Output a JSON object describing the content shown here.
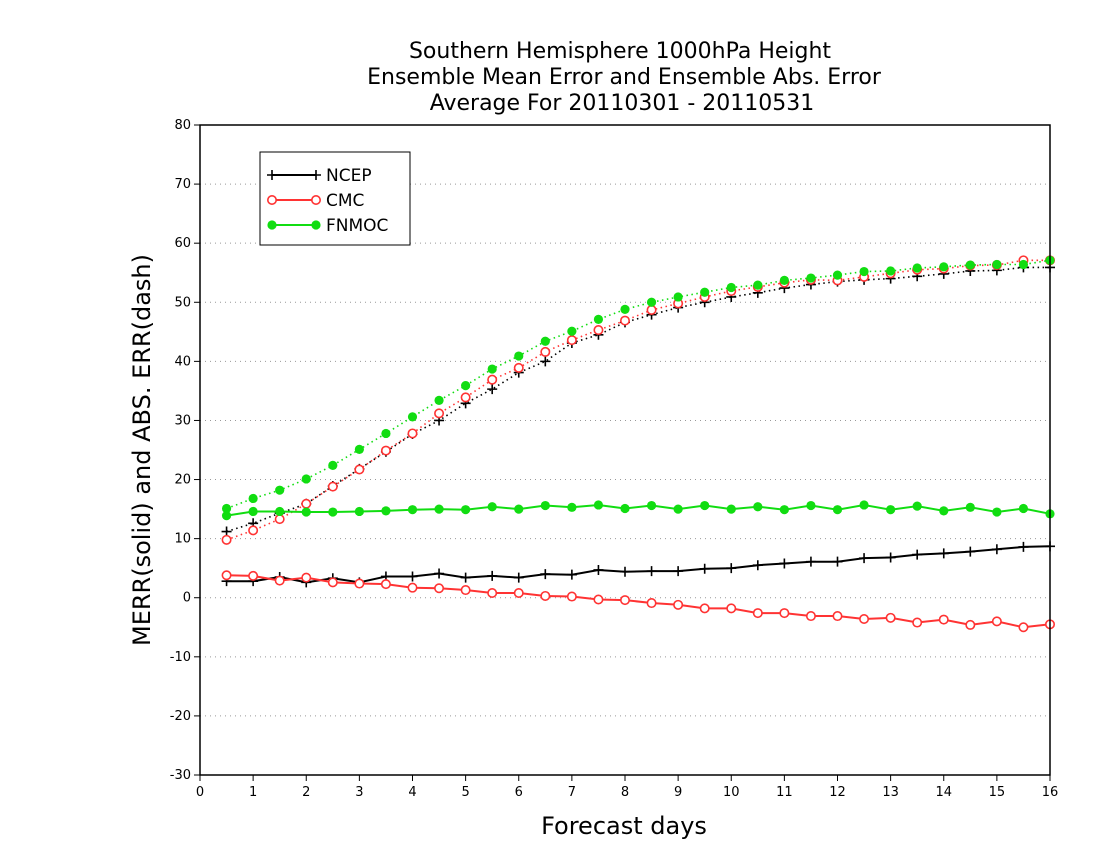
{
  "chart_data": {
    "type": "line",
    "title_lines": [
      "Southern Hemisphere 1000hPa Height",
      "Ensemble Mean Error and Ensemble Abs. Error",
      "Average For 20110301 - 20110531"
    ],
    "xlabel": "Forecast days",
    "ylabel": "MERR(solid) and ABS. ERR(dash)",
    "xlim": [
      0,
      16
    ],
    "ylim": [
      -30,
      80
    ],
    "xticks": [
      0,
      1,
      2,
      3,
      4,
      5,
      6,
      7,
      8,
      9,
      10,
      11,
      12,
      13,
      14,
      15,
      16
    ],
    "yticks": [
      -30,
      -20,
      -10,
      0,
      10,
      20,
      30,
      40,
      50,
      60,
      70,
      80
    ],
    "grid": "horizontal dotted",
    "legend_position": "top-left",
    "x": [
      0.5,
      1.0,
      1.5,
      2.0,
      2.5,
      3.0,
      3.5,
      4.0,
      4.5,
      5.0,
      5.5,
      6.0,
      6.5,
      7.0,
      7.5,
      8.0,
      8.5,
      9.0,
      9.5,
      10.0,
      10.5,
      11.0,
      11.5,
      12.0,
      12.5,
      13.0,
      13.5,
      14.0,
      14.5,
      15.0,
      15.5,
      16.0
    ],
    "series": [
      {
        "name": "NCEP",
        "color": "#000000",
        "marker": "plus",
        "mean_error": [
          2.8,
          2.8,
          3.5,
          2.6,
          3.3,
          2.6,
          3.6,
          3.6,
          4.1,
          3.4,
          3.7,
          3.4,
          4.0,
          3.9,
          4.7,
          4.4,
          4.5,
          4.5,
          4.9,
          5.0,
          5.5,
          5.8,
          6.1,
          6.1,
          6.7,
          6.8,
          7.3,
          7.5,
          7.8,
          8.2,
          8.6,
          8.7
        ],
        "abs_error": [
          11.2,
          12.6,
          14.3,
          15.9,
          18.9,
          21.8,
          24.7,
          27.7,
          30.0,
          32.9,
          35.3,
          38.1,
          40.0,
          43.1,
          44.5,
          46.6,
          47.9,
          49.1,
          50.0,
          50.9,
          51.6,
          52.4,
          53.0,
          53.5,
          53.8,
          54.0,
          54.4,
          54.8,
          55.3,
          55.4,
          55.9,
          55.9
        ]
      },
      {
        "name": "CMC",
        "color": "#ff3333",
        "marker": "open-circle",
        "mean_error": [
          3.8,
          3.7,
          2.9,
          3.4,
          2.6,
          2.4,
          2.3,
          1.7,
          1.6,
          1.3,
          0.8,
          0.8,
          0.3,
          0.2,
          -0.3,
          -0.4,
          -0.9,
          -1.2,
          -1.8,
          -1.8,
          -2.6,
          -2.6,
          -3.1,
          -3.1,
          -3.6,
          -3.4,
          -4.2,
          -3.7,
          -4.6,
          -4.0,
          -5.0,
          -4.5
        ],
        "abs_error": [
          9.8,
          11.4,
          13.3,
          15.9,
          18.8,
          21.7,
          24.9,
          27.8,
          31.2,
          33.9,
          36.9,
          38.9,
          41.6,
          43.6,
          45.3,
          46.9,
          48.7,
          49.8,
          50.9,
          51.9,
          52.6,
          53.3,
          53.8,
          53.7,
          54.3,
          54.9,
          55.5,
          55.7,
          56.2,
          56.3,
          57.1,
          57.1
        ]
      },
      {
        "name": "FNMOC",
        "color": "#11dd11",
        "marker": "filled-circle",
        "mean_error": [
          13.9,
          14.6,
          14.6,
          14.5,
          14.5,
          14.6,
          14.7,
          14.9,
          15.0,
          14.9,
          15.4,
          15.0,
          15.6,
          15.3,
          15.7,
          15.1,
          15.6,
          15.0,
          15.6,
          15.0,
          15.4,
          14.9,
          15.6,
          14.9,
          15.7,
          14.9,
          15.5,
          14.7,
          15.3,
          14.5,
          15.1,
          14.2
        ],
        "abs_error": [
          15.1,
          16.8,
          18.2,
          20.1,
          22.4,
          25.1,
          27.8,
          30.6,
          33.4,
          35.9,
          38.7,
          40.9,
          43.4,
          45.1,
          47.1,
          48.8,
          50.0,
          50.9,
          51.7,
          52.5,
          52.9,
          53.7,
          54.1,
          54.6,
          55.2,
          55.3,
          55.8,
          56.0,
          56.3,
          56.4,
          56.4,
          57.1
        ]
      }
    ]
  }
}
